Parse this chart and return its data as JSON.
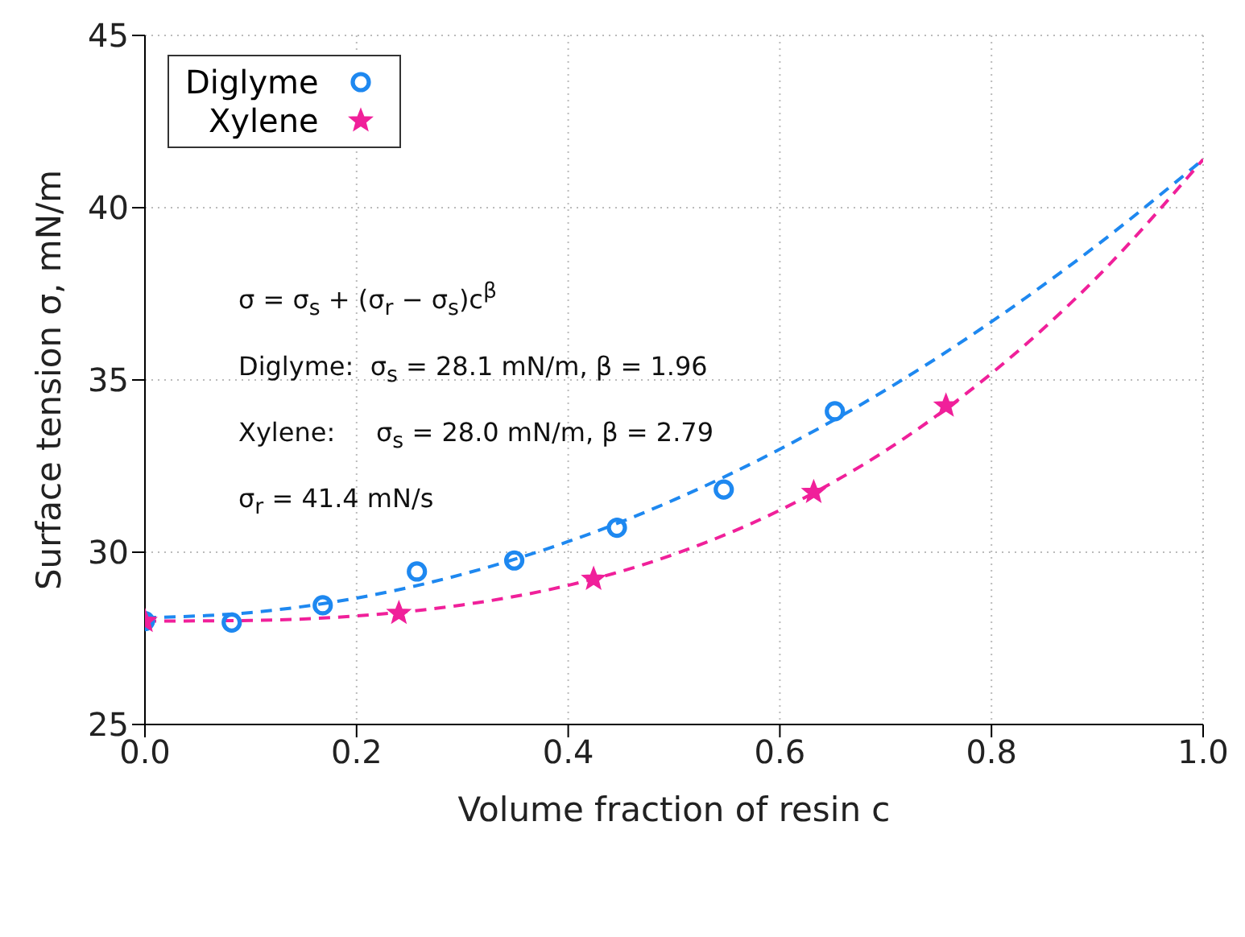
{
  "chart_data": {
    "type": "scatter",
    "xlabel": "Volume fraction of resin c",
    "ylabel": "Surface tension σ, mN/m",
    "xlim": [
      0,
      1
    ],
    "xticks": [
      {
        "value": 0,
        "label": "0.0"
      },
      {
        "value": 0.2,
        "label": "0.2"
      },
      {
        "value": 0.4,
        "label": "0.4"
      },
      {
        "value": 0.6,
        "label": "0.6"
      },
      {
        "value": 0.8,
        "label": "0.8"
      },
      {
        "value": 1,
        "label": "1.0"
      }
    ],
    "ylim": [
      25,
      45
    ],
    "yticks": [
      25,
      30,
      35,
      40,
      45
    ],
    "grid": true,
    "legend": "top left",
    "annotations": [
      "σ = σ$_{s}$ + (σ$_{r}$ − σ$_{s}$)c$^{β}$",
      "Diglyme:  σ$_{s}$ = 28.1 mN/m, β = 1.96",
      "Xylene:     σ$_{s}$ = 28.0 mN/m, β = 2.79",
      "σ$_{r}$ = 41.4 mN/s"
    ],
    "series": [
      {
        "name": "Diglyme",
        "marker": "circle",
        "color": "#1e88f0",
        "x": [
          0,
          0.082,
          0.168,
          0.257,
          0.349,
          0.446,
          0.547,
          0.652
        ],
        "values": [
          28.0,
          27.96,
          28.46,
          29.44,
          29.76,
          30.71,
          31.82,
          34.09
        ]
      },
      {
        "name": "Xylene",
        "marker": "star",
        "color": "#f0209a",
        "x": [
          0,
          0.24,
          0.424,
          0.632,
          0.757
        ],
        "values": [
          28.0,
          28.23,
          29.22,
          31.74,
          34.25
        ]
      },
      {
        "type": "line",
        "line_style": "dashed",
        "marker": "none",
        "color": "#1e88f0",
        "x": [
          0,
          0.1,
          0.2,
          0.3,
          0.4,
          0.5,
          0.6,
          0.7,
          0.8,
          0.9,
          1
        ],
        "values": [
          28.1,
          28.25,
          28.67,
          29.36,
          30.31,
          31.52,
          32.99,
          34.71,
          36.69,
          38.92,
          41.4
        ]
      },
      {
        "type": "line",
        "line_style": "dashed",
        "marker": "none",
        "color": "#f0209a",
        "x": [
          0,
          0.1,
          0.2,
          0.3,
          0.4,
          0.5,
          0.6,
          0.7,
          0.8,
          0.9,
          1
        ],
        "values": [
          28.0,
          28.02,
          28.15,
          28.47,
          29.04,
          29.94,
          31.22,
          32.95,
          35.19,
          37.99,
          41.4
        ]
      }
    ]
  }
}
